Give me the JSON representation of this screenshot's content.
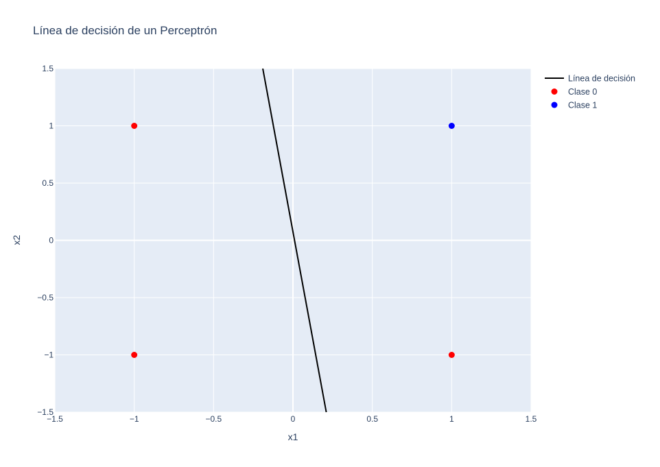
{
  "chart_data": {
    "type": "scatter",
    "title": "Línea de decisión de un Perceptrón",
    "xlabel": "x1",
    "ylabel": "x2",
    "xlim": [
      -1.5,
      1.5
    ],
    "ylim": [
      -1.5,
      1.5
    ],
    "x_ticks": [
      -1.5,
      -1,
      -0.5,
      0,
      0.5,
      1,
      1.5
    ],
    "y_ticks": [
      -1.5,
      -1,
      -0.5,
      0,
      0.5,
      1,
      1.5
    ],
    "x_tick_labels": [
      "−1.5",
      "−1",
      "−0.5",
      "0",
      "0.5",
      "1",
      "1.5"
    ],
    "y_tick_labels": [
      "−1.5",
      "−1",
      "−0.5",
      "0",
      "0.5",
      "1",
      "1.5"
    ],
    "grid": true,
    "legend_position": "top-right",
    "colors": {
      "plot_bg": "#e5ecf6",
      "grid": "#ffffff",
      "text": "#2a3f5f"
    },
    "series": [
      {
        "name": "Línea de decisión",
        "mode": "line",
        "color": "#000000",
        "x": [
          -0.19,
          0.21
        ],
        "y": [
          1.5,
          -1.5
        ]
      },
      {
        "name": "Clase 0",
        "mode": "markers",
        "color": "#ff0000",
        "x": [
          -1,
          -1,
          1
        ],
        "y": [
          1,
          -1,
          -1
        ]
      },
      {
        "name": "Clase 1",
        "mode": "markers",
        "color": "#0000ff",
        "x": [
          1
        ],
        "y": [
          1
        ]
      }
    ]
  }
}
